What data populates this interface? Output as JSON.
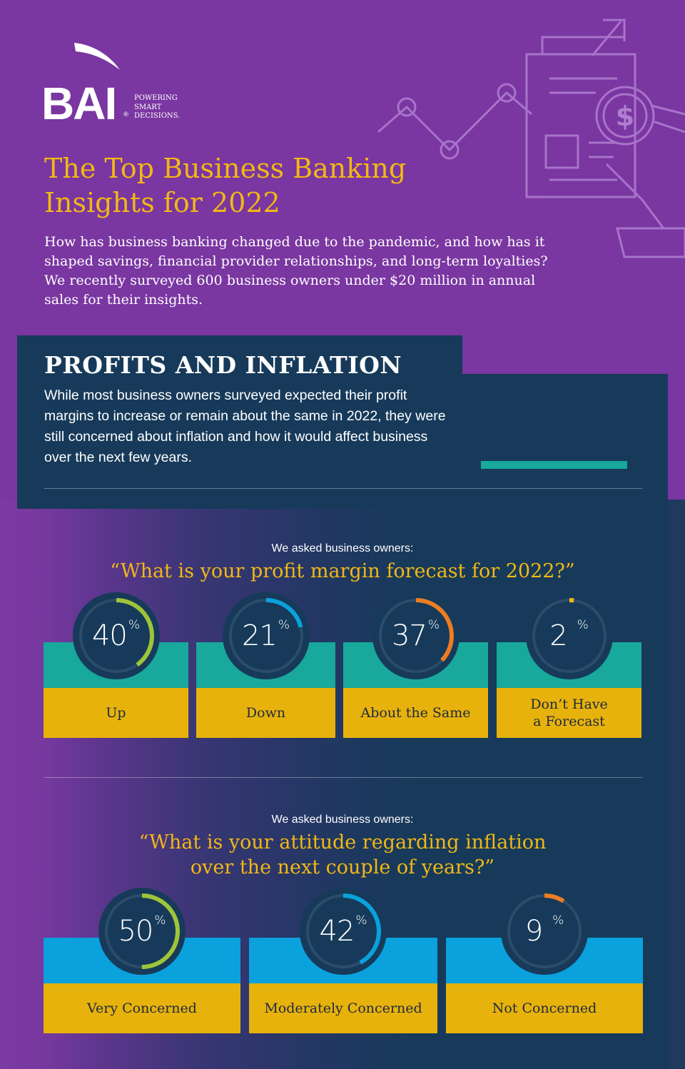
{
  "brand": {
    "logo_text": "BAI",
    "registered": "®",
    "tagline": [
      "POWERING",
      "SMART",
      "DECISIONS."
    ]
  },
  "header": {
    "title": "The Top Business Banking Insights for 2022",
    "intro": "How has business banking changed due to the pandemic, and how has it shaped savings, financial provider relationships, and long-term loyalties? We recently surveyed 600 business owners under $20 million in annual sales for their insights."
  },
  "section": {
    "title": "PROFITS AND INFLATION",
    "text": "While most business owners surveyed expected their profit margins to increase or remain about the same in 2022, they were still concerned about inflation and how it would affect business over the next few years."
  },
  "colors": {
    "purple": "#7a36a1",
    "navy": "#173a5a",
    "gold": "#f2b814",
    "label_gold": "#e8b20c",
    "teal": "#18a89c",
    "blue": "#0aa1dd",
    "green": "#9ec43a",
    "orange": "#ee7d22",
    "ring_track": "#2b4c6a"
  },
  "chart_data": [
    {
      "type": "bar",
      "intro": "We asked business owners:",
      "question": "“What is your profit margin forecast for 2022?”",
      "unit": "%",
      "categories": [
        "Up",
        "Down",
        "About the Same",
        "Don’t Have a Forecast"
      ],
      "values": [
        40,
        21,
        37,
        2
      ],
      "ring_colors": [
        "#9ec43a",
        "#0aa1dd",
        "#ee7d22",
        "#f2b814"
      ]
    },
    {
      "type": "bar",
      "intro": "We asked business owners:",
      "question": "“What is your attitude regarding inflation over the next couple of years?”",
      "unit": "%",
      "categories": [
        "Very Concerned",
        "Moderately Concerned",
        "Not Concerned"
      ],
      "values": [
        50,
        42,
        9
      ],
      "ring_colors": [
        "#9ec43a",
        "#0aa1dd",
        "#ee7d22"
      ]
    }
  ]
}
